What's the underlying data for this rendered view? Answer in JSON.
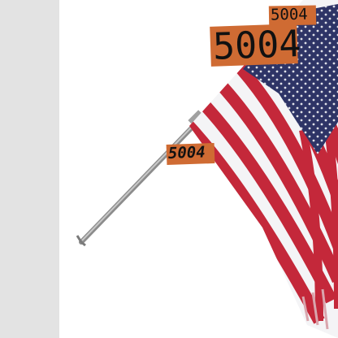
{
  "image": {
    "subject": "us-flag-on-pole",
    "side_panel_color": "#e3e3e3",
    "flag_colors": {
      "red": "#c4283a",
      "white": "#f4f4f6",
      "blue": "#2e3466"
    }
  },
  "labels": [
    {
      "text": "5004"
    },
    {
      "text": "5004"
    },
    {
      "text": "5004"
    }
  ]
}
